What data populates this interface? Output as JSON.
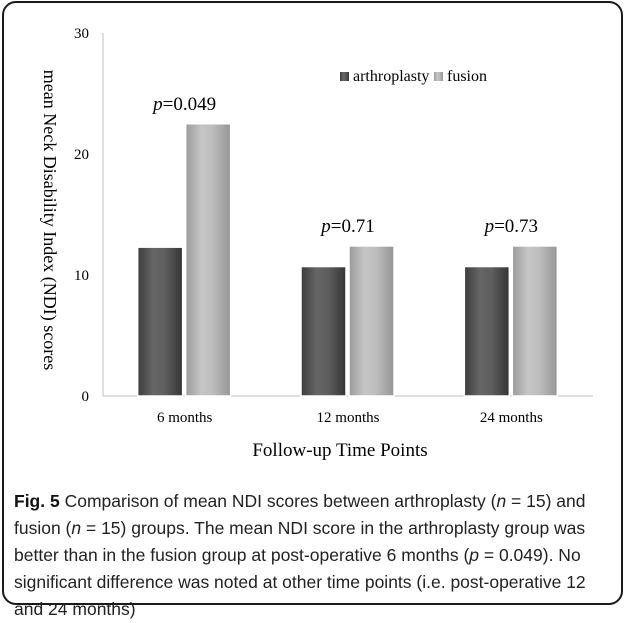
{
  "chart_data": {
    "type": "bar",
    "categories": [
      "6 months",
      "12 months",
      "24 months"
    ],
    "series": [
      {
        "name": "arthroplasty",
        "values": [
          12.3,
          10.7,
          10.7
        ],
        "color": "#555555"
      },
      {
        "name": "fusion",
        "values": [
          22.5,
          12.4,
          12.4
        ],
        "color": "#b4b4b4"
      }
    ],
    "annotations": [
      {
        "prefix": "p",
        "text": "=0.049"
      },
      {
        "prefix": "p",
        "text": "=0.71"
      },
      {
        "prefix": "p",
        "text": "=0.73"
      }
    ],
    "xlabel": "Follow-up Time Points",
    "ylabel": "mean Neck Disability Index (NDI) scores",
    "ylim": [
      0,
      30
    ],
    "yticks": [
      "0",
      "10",
      "20",
      "30"
    ],
    "grid": false,
    "legend_position": "top-right"
  },
  "caption": {
    "label": "Fig. 5",
    "text_html": "Comparison of mean NDI scores between arthroplasty (<i>n</i> = 15) and fusion (<i>n</i> = 15) groups. The mean NDI score in the arthroplasty group was better than in the fusion group at post-operative 6 months (<i>p</i> = 0.049). No significant difference was noted at other time points (i.e. post-operative 12 and 24 months)"
  }
}
